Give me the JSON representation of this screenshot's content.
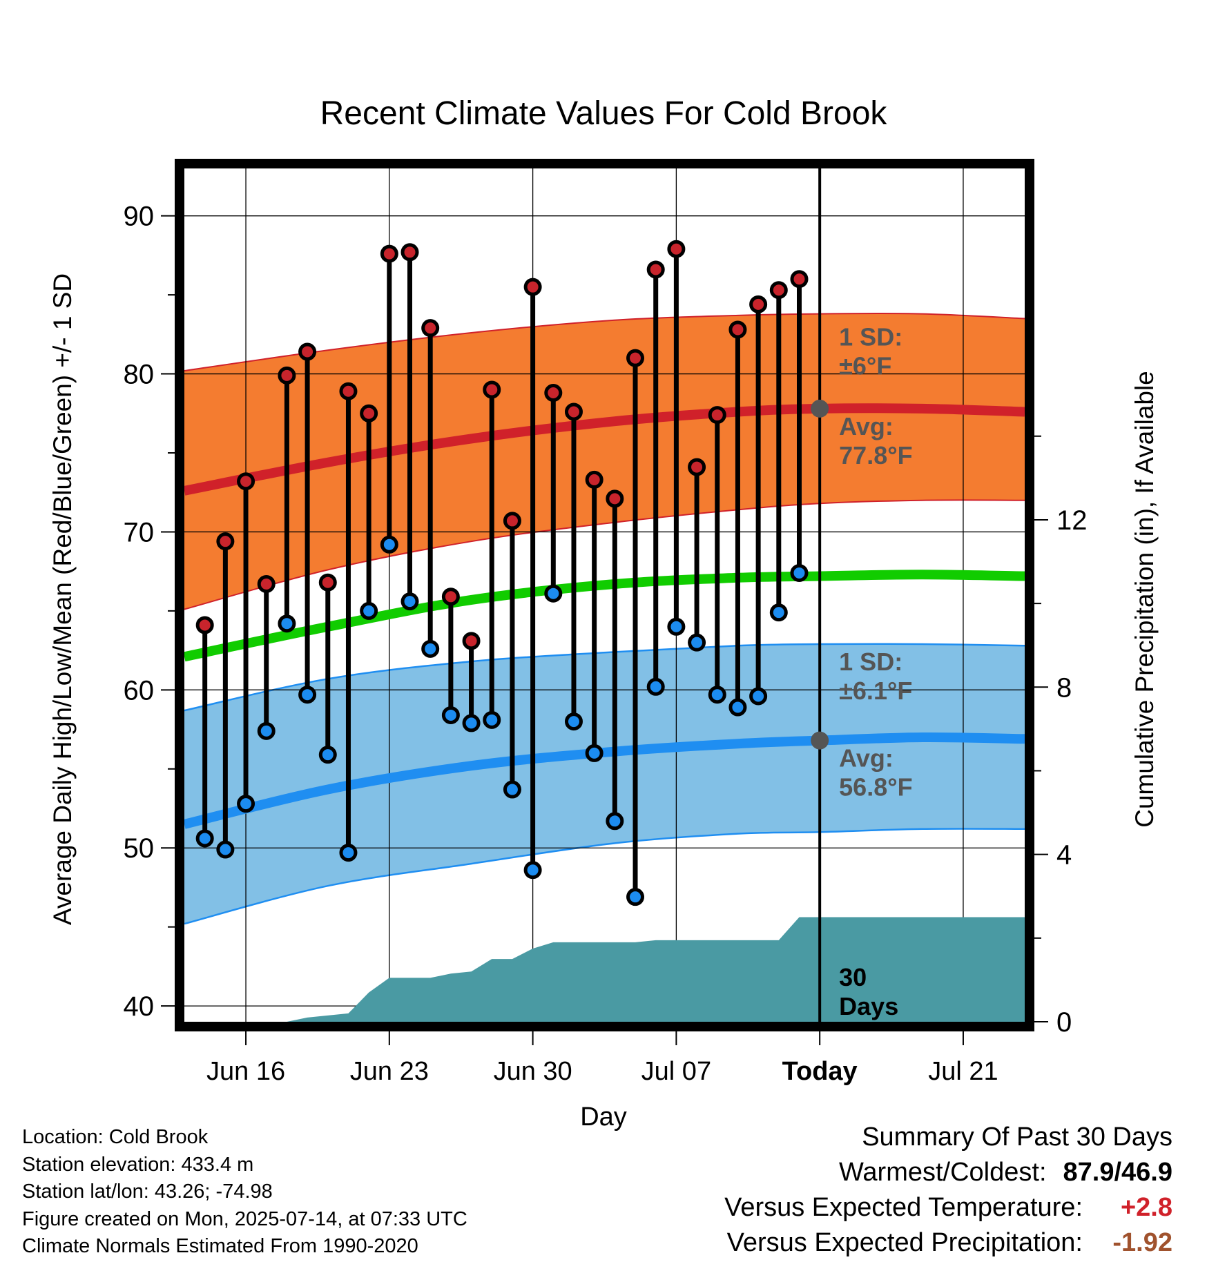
{
  "chart_data": {
    "type": "line",
    "title": "Recent Climate Values For Cold Brook",
    "xlabel": "Day",
    "ylabel": "Average Daily High/Low/Mean (Red/Blue/Green) +/- 1 SD",
    "y2label": "Cumulative Precipitation (in), If Available",
    "xlim": [
      "2025-06-13",
      "2025-07-24"
    ],
    "ylim": [
      39,
      93
    ],
    "y2lim": [
      0,
      20.4
    ],
    "yticks": [
      "40",
      "50",
      "60",
      "70",
      "80",
      "90"
    ],
    "y2ticks": [
      "0",
      "4",
      "8",
      "12"
    ],
    "xticks": [
      {
        "date": "2025-06-16",
        "label": "Jun 16"
      },
      {
        "date": "2025-06-23",
        "label": "Jun 23"
      },
      {
        "date": "2025-06-30",
        "label": "Jun 30"
      },
      {
        "date": "2025-07-07",
        "label": "Jul 07"
      },
      {
        "date": "2025-07-14",
        "label": "Today"
      },
      {
        "date": "2025-07-21",
        "label": "Jul 21"
      }
    ],
    "grid": true,
    "today": "2025-07-14",
    "normals_dates": [
      "2025-06-13",
      "2025-06-20",
      "2025-06-27",
      "2025-07-04",
      "2025-07-10",
      "2025-07-14",
      "2025-07-19",
      "2025-07-24"
    ],
    "normal_high": [
      72.6,
      74.4,
      75.9,
      77.0,
      77.6,
      77.8,
      77.8,
      77.6
    ],
    "normal_high_upper": [
      80.2,
      81.5,
      82.6,
      83.4,
      83.7,
      83.8,
      83.8,
      83.5
    ],
    "normal_high_lower": [
      65.1,
      67.6,
      69.4,
      70.6,
      71.4,
      71.8,
      72.0,
      72.0
    ],
    "normal_mean": [
      62.1,
      64.0,
      65.7,
      66.7,
      67.1,
      67.2,
      67.3,
      67.2
    ],
    "normal_low": [
      51.5,
      53.7,
      55.2,
      56.1,
      56.6,
      56.8,
      57.0,
      56.9
    ],
    "normal_low_upper": [
      58.7,
      60.7,
      61.8,
      62.4,
      62.8,
      62.9,
      62.9,
      62.8
    ],
    "normal_low_lower": [
      45.2,
      47.6,
      49.0,
      50.3,
      50.9,
      51.0,
      51.2,
      51.2
    ],
    "daily": [
      {
        "date": "2025-06-14",
        "high": 64.1,
        "low": 50.6
      },
      {
        "date": "2025-06-15",
        "high": 69.4,
        "low": 49.9
      },
      {
        "date": "2025-06-16",
        "high": 73.2,
        "low": 52.8
      },
      {
        "date": "2025-06-17",
        "high": 66.7,
        "low": 57.4
      },
      {
        "date": "2025-06-18",
        "high": 79.9,
        "low": 64.2
      },
      {
        "date": "2025-06-19",
        "high": 81.4,
        "low": 59.7
      },
      {
        "date": "2025-06-20",
        "high": 66.8,
        "low": 55.9
      },
      {
        "date": "2025-06-21",
        "high": 78.9,
        "low": 49.7
      },
      {
        "date": "2025-06-22",
        "high": 77.5,
        "low": 65.0
      },
      {
        "date": "2025-06-23",
        "high": 87.6,
        "low": 69.2
      },
      {
        "date": "2025-06-24",
        "high": 87.7,
        "low": 65.6
      },
      {
        "date": "2025-06-25",
        "high": 82.9,
        "low": 62.6
      },
      {
        "date": "2025-06-26",
        "high": 65.9,
        "low": 58.4
      },
      {
        "date": "2025-06-27",
        "high": 63.1,
        "low": 57.9
      },
      {
        "date": "2025-06-28",
        "high": 79.0,
        "low": 58.1
      },
      {
        "date": "2025-06-29",
        "high": 70.7,
        "low": 53.7
      },
      {
        "date": "2025-06-30",
        "high": 85.5,
        "low": 48.6
      },
      {
        "date": "2025-07-01",
        "high": 78.8,
        "low": 66.1
      },
      {
        "date": "2025-07-02",
        "high": 77.6,
        "low": 58.0
      },
      {
        "date": "2025-07-03",
        "high": 73.3,
        "low": 56.0
      },
      {
        "date": "2025-07-04",
        "high": 72.1,
        "low": 51.7
      },
      {
        "date": "2025-07-05",
        "high": 81.0,
        "low": 46.9
      },
      {
        "date": "2025-07-06",
        "high": 86.6,
        "low": 60.2
      },
      {
        "date": "2025-07-07",
        "high": 87.9,
        "low": 64.0
      },
      {
        "date": "2025-07-08",
        "high": 74.1,
        "low": 63.0
      },
      {
        "date": "2025-07-09",
        "high": 77.4,
        "low": 59.7
      },
      {
        "date": "2025-07-10",
        "high": 82.8,
        "low": 58.9
      },
      {
        "date": "2025-07-11",
        "high": 84.4,
        "low": 59.6
      },
      {
        "date": "2025-07-12",
        "high": 85.3,
        "low": 64.9
      },
      {
        "date": "2025-07-13",
        "high": 86.0,
        "low": 67.4
      }
    ],
    "precip_cumulative": {
      "dates": [
        "2025-06-18",
        "2025-06-19",
        "2025-06-20",
        "2025-06-21",
        "2025-06-22",
        "2025-06-23",
        "2025-06-24",
        "2025-06-25",
        "2025-06-26",
        "2025-06-27",
        "2025-06-28",
        "2025-06-29",
        "2025-06-30",
        "2025-07-01",
        "2025-07-02",
        "2025-07-03",
        "2025-07-04",
        "2025-07-05",
        "2025-07-06",
        "2025-07-07",
        "2025-07-08",
        "2025-07-09",
        "2025-07-10",
        "2025-07-11",
        "2025-07-12",
        "2025-07-13",
        "2025-07-24"
      ],
      "values": [
        0.0,
        0.1,
        0.15,
        0.2,
        0.7,
        1.05,
        1.05,
        1.05,
        1.15,
        1.2,
        1.5,
        1.5,
        1.75,
        1.9,
        1.9,
        1.9,
        1.9,
        1.9,
        1.95,
        1.95,
        1.95,
        1.95,
        1.95,
        1.95,
        1.95,
        2.5,
        2.5
      ]
    },
    "annotations": {
      "high_sd": "1 SD:",
      "high_sd_val": "±6°F",
      "high_avg": "Avg:",
      "high_avg_val": "77.8°F",
      "low_sd": "1 SD:",
      "low_sd_val": "±6.1°F",
      "low_avg": "Avg:",
      "low_avg_val": "56.8°F",
      "precip_days": "30",
      "precip_days_label": "Days"
    },
    "colors": {
      "high_band": "#f47c30",
      "high_line": "#d0212a",
      "low_band": "#82c0e6",
      "low_line": "#1f8ef1",
      "mean_line": "#11cc00",
      "precip": "#4a9aa3",
      "high_dot": "#c8242c",
      "low_dot": "#1c8cf0",
      "annotation": "#555555"
    }
  },
  "info": {
    "location": "Location: Cold Brook",
    "elevation": "Station elevation: 433.4 m",
    "latlon": "Station lat/lon: 43.26; -74.98",
    "created": "Figure created on Mon, 2025-07-14, at 07:33 UTC",
    "normals": "Climate Normals Estimated From 1990-2020"
  },
  "summary": {
    "title": "Summary Of Past 30 Days",
    "warmest_label": "Warmest/Coldest:",
    "warmest_value": "87.9/46.9",
    "temp_label": "Versus Expected Temperature:",
    "temp_value": "+2.8",
    "precip_label": "Versus Expected Precipitation:",
    "precip_value": "-1.92"
  }
}
